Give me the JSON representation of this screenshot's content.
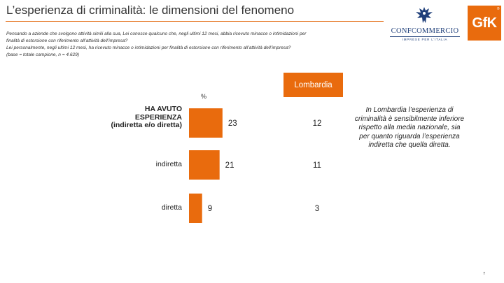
{
  "title": "L’esperienza di criminalità: le dimensioni del fenomeno",
  "question": [
    "Pensando a aziende che svolgono attività simili alla sua, Lei conosce qualcuno che, negli ultimi 12 mesi, abbia ricevuto minacce o intimidazioni per",
    "finalità di estorsione con riferimento all’attività dell’impresa?",
    "Lei personalmente, negli ultimi 12 mesi, ha ricevuto minacce o intimidazioni per finalità di estorsione con riferimento all’attività dell’impresa?",
    "(base = totale campione, n = 4.629)"
  ],
  "logos": {
    "confcommercio_name": "CONFCOMMERCIO",
    "confcommercio_sub": "IMPRESE PER L’ITALIA",
    "gfk": "GfK",
    "gfk_tm": "®"
  },
  "region_header": "Lombardia",
  "note": "In Lombardia l’esperienza di criminalità è sensibilmente inferiore rispetto alla media nazionale, sia per quanto riguarda l’esperienza indiretta che quella diretta.",
  "page_number": "7",
  "colors": {
    "accent": "#e96b0d",
    "text": "#222222"
  },
  "chart_data": {
    "type": "bar",
    "orientation": "horizontal",
    "unit_label": "%",
    "categories": [
      "HA AVUTO ESPERIENZA (indiretta e/o diretta)",
      "indiretta",
      "diretta"
    ],
    "category_lines": [
      [
        "HA AVUTO",
        "ESPERIENZA",
        "(indiretta e/o diretta)"
      ],
      [
        "indiretta"
      ],
      [
        "diretta"
      ]
    ],
    "series": [
      {
        "values": [
          23,
          21,
          9
        ]
      },
      {
        "name": "Lombardia",
        "values": [
          12,
          11,
          3
        ]
      }
    ],
    "xlim": [
      0,
      25
    ],
    "grid": false,
    "legend": "none"
  }
}
